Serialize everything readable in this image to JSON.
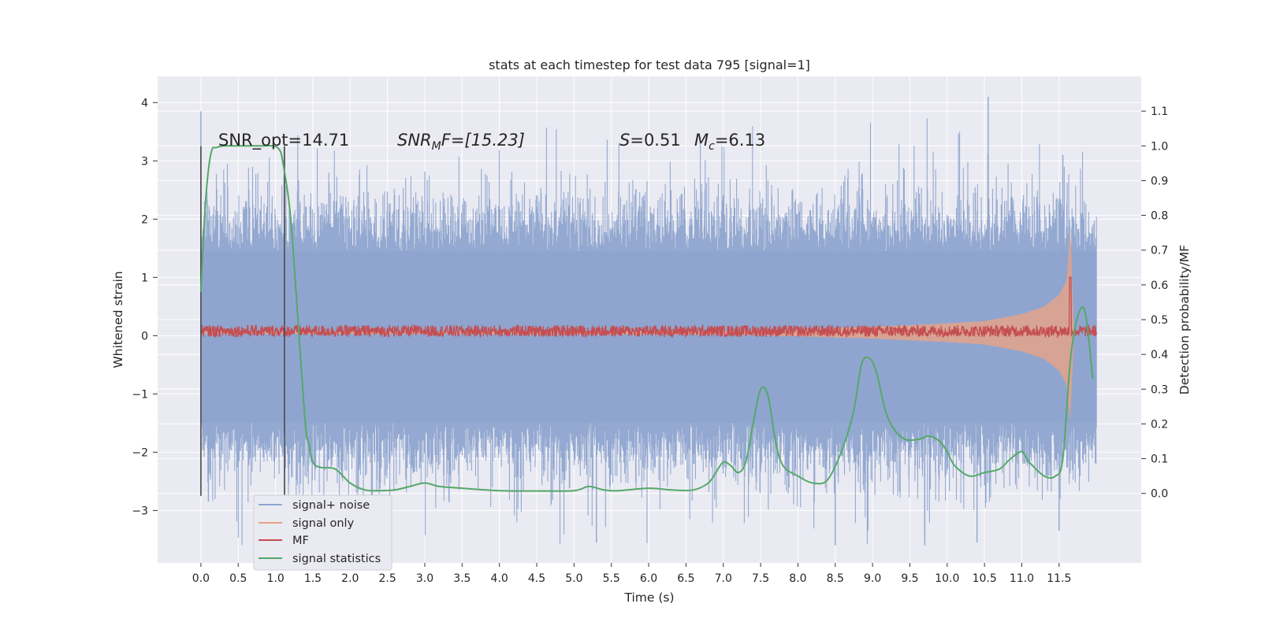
{
  "chart_data": {
    "type": "line",
    "title": "stats at each timestep for test data 795 [signal=1]",
    "xlabel": "Time (s)",
    "ylabel_left": "Whitened strain",
    "ylabel_right": "Detection probability/MF",
    "xlim": [
      -0.58,
      12.6
    ],
    "ylim_left": [
      -3.9,
      4.45
    ],
    "ylim_right": [
      -0.2,
      1.2
    ],
    "x_ticks": [
      "0.0",
      "0.5",
      "1.0",
      "1.5",
      "2.0",
      "2.5",
      "3.0",
      "3.5",
      "4.0",
      "4.5",
      "5.0",
      "5.5",
      "6.0",
      "6.5",
      "7.0",
      "7.5",
      "8.0",
      "8.5",
      "9.0",
      "9.5",
      "10.0",
      "10.5",
      "11.0",
      "11.5"
    ],
    "y_ticks_left": [
      "−3",
      "−2",
      "−1",
      "0",
      "1",
      "2",
      "3",
      "4"
    ],
    "y_ticks_right": [
      "0.0",
      "0.1",
      "0.2",
      "0.3",
      "0.4",
      "0.5",
      "0.6",
      "0.7",
      "0.8",
      "0.9",
      "1.0",
      "1.1"
    ],
    "grid": true,
    "legend_position": "lower-left",
    "colors": {
      "background": "#eaeaf2",
      "grid": "#ffffff",
      "noise": "#8fa5cf",
      "signal": "#e8a285",
      "mf": "#c44e52",
      "stats": "#55a868",
      "marker_line": "#4a4a4a"
    },
    "annotations": {
      "snr_opt": "SNR_opt=14.71",
      "snr_mf_prefix": "SNR",
      "snr_mf_sub": "M",
      "snr_mf_suffix": "F=[15.23]",
      "s_label": "S",
      "s_value": "=0.51",
      "mc_label": "M",
      "mc_sub": "c",
      "mc_value": "=6.13"
    },
    "series": [
      {
        "name": "signal+ noise",
        "axis": "left",
        "kind": "noise_band",
        "x_range": [
          0.0,
          12.0
        ],
        "typical_range": [
          -1.55,
          1.5
        ],
        "extreme_range": [
          -3.6,
          4.1
        ]
      },
      {
        "name": "signal only",
        "axis": "left",
        "kind": "chirp_envelope",
        "x": [
          0.0,
          7.0,
          8.0,
          9.0,
          10.0,
          10.5,
          11.0,
          11.3,
          11.5,
          11.6,
          11.65,
          11.7
        ],
        "amplitude": [
          0.02,
          0.03,
          0.06,
          0.1,
          0.16,
          0.2,
          0.32,
          0.45,
          0.65,
          0.9,
          1.8,
          0.0
        ]
      },
      {
        "name": "MF",
        "axis": "left",
        "kind": "noisy_flat",
        "x_range": [
          0.0,
          12.0
        ],
        "center": 0.08,
        "spread": 0.1,
        "spike": {
          "x": 11.65,
          "value": 1.0
        }
      },
      {
        "name": "signal statistics",
        "axis": "right",
        "kind": "line",
        "x": [
          0.0,
          0.05,
          0.1,
          0.15,
          0.2,
          0.3,
          0.5,
          0.8,
          0.95,
          1.05,
          1.1,
          1.2,
          1.3,
          1.4,
          1.45,
          1.5,
          1.6,
          1.8,
          2.0,
          2.2,
          2.4,
          2.6,
          2.8,
          3.0,
          3.2,
          3.5,
          4.0,
          4.5,
          5.0,
          5.2,
          5.4,
          5.6,
          6.0,
          6.3,
          6.6,
          6.8,
          6.9,
          7.0,
          7.1,
          7.2,
          7.3,
          7.4,
          7.5,
          7.6,
          7.7,
          7.8,
          8.0,
          8.2,
          8.4,
          8.6,
          8.75,
          8.85,
          8.95,
          9.05,
          9.2,
          9.4,
          9.6,
          9.75,
          9.9,
          10.0,
          10.1,
          10.3,
          10.5,
          10.7,
          10.85,
          11.0,
          11.1,
          11.3,
          11.45,
          11.55,
          11.65,
          11.75,
          11.85,
          11.95
        ],
        "y": [
          0.58,
          0.8,
          0.93,
          0.99,
          0.995,
          1.0,
          1.0,
          1.0,
          1.0,
          0.99,
          0.95,
          0.8,
          0.5,
          0.2,
          0.14,
          0.09,
          0.075,
          0.07,
          0.03,
          0.01,
          0.008,
          0.01,
          0.02,
          0.03,
          0.02,
          0.015,
          0.008,
          0.007,
          0.008,
          0.02,
          0.01,
          0.008,
          0.015,
          0.01,
          0.01,
          0.03,
          0.06,
          0.09,
          0.08,
          0.06,
          0.09,
          0.2,
          0.3,
          0.28,
          0.15,
          0.08,
          0.05,
          0.03,
          0.04,
          0.13,
          0.24,
          0.37,
          0.39,
          0.35,
          0.22,
          0.16,
          0.155,
          0.165,
          0.15,
          0.12,
          0.08,
          0.05,
          0.06,
          0.07,
          0.1,
          0.12,
          0.09,
          0.05,
          0.05,
          0.1,
          0.38,
          0.51,
          0.52,
          0.33
        ]
      }
    ]
  }
}
